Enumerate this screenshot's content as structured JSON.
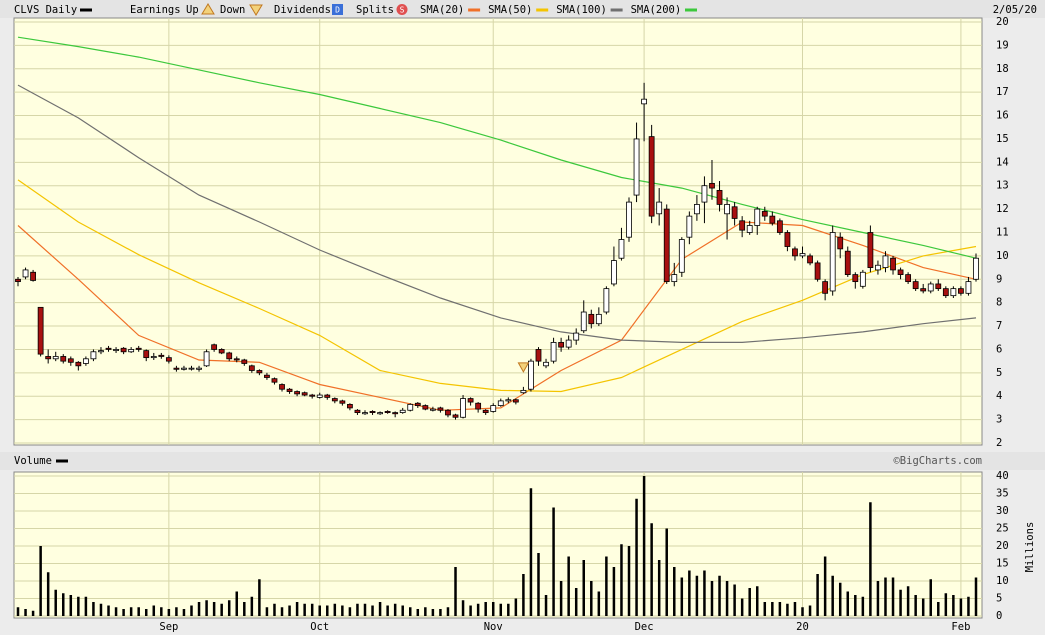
{
  "chart_data": {
    "type": "candlestick",
    "title": "CLVS Daily",
    "earnings_label": "Earnings",
    "up_label": "Up",
    "down_label": "Down",
    "dividends_label": "Dividends",
    "dividends_icon": "D",
    "splits_label": "Splits",
    "splits_icon": "S",
    "date": "2/05/20",
    "categories": [
      null,
      null,
      null,
      null,
      null,
      null,
      null,
      null,
      null,
      null,
      null,
      null,
      null,
      null,
      null,
      null,
      null,
      null,
      null,
      null,
      "Sep",
      null,
      null,
      null,
      null,
      null,
      null,
      null,
      null,
      null,
      null,
      null,
      null,
      null,
      null,
      null,
      null,
      null,
      null,
      null,
      "Oct",
      null,
      null,
      null,
      null,
      null,
      null,
      null,
      null,
      null,
      null,
      null,
      null,
      null,
      null,
      null,
      null,
      null,
      null,
      null,
      null,
      null,
      null,
      "Nov",
      null,
      null,
      null,
      null,
      null,
      null,
      null,
      null,
      null,
      null,
      null,
      null,
      null,
      null,
      null,
      null,
      null,
      null,
      null,
      "Dec",
      null,
      null,
      null,
      null,
      null,
      null,
      null,
      null,
      null,
      null,
      null,
      null,
      null,
      null,
      null,
      null,
      null,
      null,
      null,
      null,
      "20",
      null,
      null,
      null,
      null,
      null,
      null,
      null,
      null,
      null,
      null,
      null,
      null,
      null,
      null,
      null,
      null,
      null,
      null,
      null,
      null,
      "Feb",
      null,
      null
    ],
    "open": [
      9.0,
      9.1,
      9.3,
      7.8,
      5.7,
      5.6,
      5.7,
      5.6,
      5.45,
      5.4,
      5.6,
      5.9,
      6.05,
      5.95,
      6.05,
      5.9,
      6.05,
      5.95,
      5.65,
      5.75,
      5.65,
      5.2,
      5.15,
      5.2,
      5.15,
      5.3,
      6.2,
      6.0,
      5.85,
      5.6,
      5.55,
      5.3,
      5.1,
      4.9,
      4.75,
      4.5,
      4.3,
      4.2,
      4.15,
      4.05,
      3.95,
      4.05,
      3.9,
      3.8,
      3.65,
      3.4,
      3.25,
      3.35,
      3.25,
      3.35,
      3.3,
      3.3,
      3.4,
      3.7,
      3.6,
      3.4,
      3.5,
      3.4,
      3.2,
      3.1,
      3.9,
      3.7,
      3.4,
      3.35,
      3.6,
      3.8,
      3.85,
      4.15,
      4.3,
      6.0,
      5.3,
      5.5,
      6.3,
      6.1,
      6.4,
      6.8,
      7.5,
      7.1,
      7.6,
      8.8,
      9.9,
      10.8,
      12.6,
      16.5,
      15.1,
      11.8,
      12.0,
      8.9,
      9.3,
      10.8,
      11.8,
      12.3,
      13.1,
      12.8,
      11.8,
      12.1,
      11.5,
      11.0,
      11.3,
      11.9,
      11.7,
      11.5,
      11.0,
      10.3,
      10.0,
      10.0,
      9.7,
      8.9,
      8.5,
      10.8,
      10.2,
      9.2,
      8.7,
      11.0,
      9.4,
      9.5,
      9.9,
      9.4,
      9.2,
      8.9,
      8.6,
      8.5,
      8.8,
      8.6,
      8.3,
      8.6,
      8.4,
      9.0
    ],
    "high": [
      9.1,
      9.5,
      9.4,
      7.8,
      6.0,
      5.9,
      5.8,
      5.7,
      5.5,
      5.7,
      6.0,
      6.1,
      6.15,
      6.1,
      6.1,
      6.1,
      6.15,
      6.0,
      5.85,
      5.85,
      5.75,
      5.3,
      5.3,
      5.3,
      5.3,
      6.0,
      6.25,
      6.05,
      5.9,
      5.7,
      5.6,
      5.35,
      5.15,
      5.0,
      4.8,
      4.55,
      4.35,
      4.25,
      4.2,
      4.1,
      4.15,
      4.1,
      3.95,
      3.85,
      3.7,
      3.45,
      3.4,
      3.4,
      3.35,
      3.4,
      3.35,
      3.5,
      3.7,
      3.75,
      3.65,
      3.55,
      3.55,
      3.45,
      3.25,
      4.05,
      3.95,
      3.75,
      3.45,
      3.7,
      3.9,
      3.95,
      3.9,
      4.4,
      5.6,
      6.1,
      5.6,
      6.5,
      6.5,
      6.6,
      6.9,
      8.1,
      7.7,
      7.8,
      8.7,
      10.4,
      11.2,
      12.5,
      15.7,
      17.4,
      15.6,
      12.9,
      12.2,
      9.7,
      10.8,
      11.9,
      12.6,
      13.4,
      14.1,
      13.2,
      12.5,
      12.3,
      11.7,
      11.5,
      12.1,
      12.1,
      11.9,
      11.6,
      11.1,
      10.4,
      10.4,
      10.1,
      9.8,
      9.0,
      11.3,
      11.0,
      10.4,
      9.3,
      9.4,
      11.3,
      9.8,
      10.2,
      10.0,
      9.5,
      9.3,
      9.0,
      8.8,
      8.9,
      9.0,
      8.7,
      8.7,
      8.7,
      9.1,
      10.1
    ],
    "low": [
      8.7,
      9.0,
      8.9,
      5.7,
      5.4,
      5.5,
      5.4,
      5.3,
      5.1,
      5.3,
      5.5,
      5.8,
      5.9,
      5.85,
      5.8,
      5.85,
      5.9,
      5.5,
      5.55,
      5.6,
      5.4,
      5.05,
      5.1,
      5.1,
      5.05,
      5.25,
      5.9,
      5.8,
      5.5,
      5.45,
      5.3,
      5.0,
      4.9,
      4.7,
      4.5,
      4.2,
      4.1,
      4.0,
      4.0,
      3.9,
      3.9,
      3.85,
      3.7,
      3.6,
      3.4,
      3.2,
      3.2,
      3.2,
      3.2,
      3.25,
      3.1,
      3.25,
      3.35,
      3.5,
      3.4,
      3.35,
      3.3,
      3.1,
      3.0,
      3.05,
      3.6,
      3.3,
      3.2,
      3.3,
      3.55,
      3.7,
      3.65,
      4.1,
      4.2,
      5.3,
      5.2,
      5.4,
      5.9,
      6.0,
      6.2,
      6.7,
      6.9,
      7.0,
      7.5,
      8.7,
      9.8,
      10.6,
      12.3,
      14.9,
      11.4,
      11.3,
      8.8,
      8.7,
      9.1,
      10.5,
      11.5,
      11.4,
      12.4,
      11.9,
      10.7,
      11.3,
      10.8,
      10.9,
      10.9,
      11.5,
      11.3,
      10.9,
      10.2,
      9.8,
      9.9,
      9.6,
      8.9,
      8.1,
      8.3,
      9.9,
      9.1,
      8.6,
      8.6,
      9.3,
      9.2,
      9.3,
      9.2,
      9.0,
      8.8,
      8.5,
      8.4,
      8.4,
      8.5,
      8.2,
      8.2,
      8.3,
      8.3,
      8.9
    ],
    "close": [
      8.9,
      9.4,
      8.95,
      5.8,
      5.6,
      5.7,
      5.5,
      5.45,
      5.3,
      5.6,
      5.9,
      5.95,
      6.0,
      6.0,
      5.9,
      6.0,
      6.0,
      5.65,
      5.7,
      5.7,
      5.5,
      5.15,
      5.2,
      5.2,
      5.2,
      5.9,
      6.0,
      5.85,
      5.6,
      5.55,
      5.4,
      5.1,
      5.0,
      4.8,
      4.6,
      4.3,
      4.2,
      4.1,
      4.05,
      4.0,
      4.05,
      3.95,
      3.8,
      3.7,
      3.5,
      3.3,
      3.3,
      3.3,
      3.3,
      3.3,
      3.25,
      3.4,
      3.65,
      3.6,
      3.45,
      3.45,
      3.4,
      3.2,
      3.1,
      3.9,
      3.75,
      3.45,
      3.3,
      3.6,
      3.8,
      3.85,
      3.75,
      4.25,
      5.5,
      5.5,
      5.45,
      6.3,
      6.1,
      6.4,
      6.7,
      7.6,
      7.1,
      7.5,
      8.6,
      9.8,
      10.7,
      12.3,
      15.0,
      16.7,
      11.7,
      12.3,
      8.9,
      9.2,
      10.7,
      11.7,
      12.2,
      13.0,
      12.9,
      12.2,
      12.2,
      11.6,
      11.1,
      11.3,
      12.0,
      11.7,
      11.4,
      11.0,
      10.4,
      10.0,
      10.1,
      9.7,
      9.0,
      8.4,
      11.0,
      10.3,
      9.2,
      8.9,
      9.3,
      9.5,
      9.6,
      10.0,
      9.4,
      9.2,
      8.9,
      8.6,
      8.5,
      8.8,
      8.6,
      8.3,
      8.6,
      8.4,
      8.9,
      9.9
    ],
    "up_color": "#ffffff",
    "down_color": "#a81010",
    "earnings_down": [
      67
    ],
    "ylim": [
      2,
      20
    ],
    "yticks": [
      2,
      3,
      4,
      5,
      6,
      7,
      8,
      9,
      10,
      11,
      12,
      13,
      14,
      15,
      16,
      17,
      18,
      19,
      20
    ],
    "grid": true,
    "sma": [
      {
        "name": "SMA(20)",
        "color": "#f07028",
        "x": [
          0,
          8,
          16,
          24,
          32,
          40,
          48,
          56,
          64,
          72,
          80,
          88,
          96,
          104,
          112,
          120,
          127
        ],
        "values": [
          11.3,
          9.0,
          6.6,
          5.55,
          5.45,
          4.5,
          3.95,
          3.4,
          3.5,
          5.1,
          6.4,
          9.85,
          11.45,
          11.3,
          10.45,
          9.5,
          9.0
        ]
      },
      {
        "name": "SMA(50)",
        "color": "#f4c400",
        "x": [
          0,
          8,
          16,
          24,
          32,
          40,
          48,
          56,
          64,
          72,
          80,
          88,
          96,
          104,
          112,
          120,
          127
        ],
        "values": [
          13.25,
          11.45,
          10.05,
          8.85,
          7.75,
          6.6,
          5.1,
          4.55,
          4.25,
          4.2,
          4.8,
          6.0,
          7.2,
          8.1,
          9.2,
          10.0,
          10.4
        ]
      },
      {
        "name": "SMA(100)",
        "color": "#707070",
        "x": [
          0,
          8,
          16,
          24,
          32,
          40,
          48,
          56,
          64,
          72,
          80,
          88,
          96,
          104,
          112,
          120,
          127
        ],
        "values": [
          17.3,
          15.9,
          14.2,
          12.6,
          11.45,
          10.25,
          9.2,
          8.2,
          7.35,
          6.75,
          6.4,
          6.3,
          6.3,
          6.5,
          6.75,
          7.1,
          7.35
        ]
      },
      {
        "name": "SMA(200)",
        "color": "#3cc83c",
        "x": [
          0,
          8,
          16,
          24,
          32,
          40,
          48,
          56,
          64,
          72,
          80,
          88,
          96,
          104,
          112,
          120,
          127
        ],
        "values": [
          19.35,
          18.95,
          18.5,
          17.95,
          17.4,
          16.9,
          16.3,
          15.7,
          14.95,
          14.1,
          13.35,
          12.9,
          12.2,
          11.55,
          11.0,
          10.45,
          9.9
        ]
      }
    ],
    "volume": {
      "title": "Volume",
      "credit": "©BigCharts.com",
      "y_label": "Millions",
      "color": "#000000",
      "values": [
        2.5,
        2,
        1.5,
        20,
        12.5,
        7.5,
        6.5,
        6,
        5.5,
        5.5,
        4,
        3.5,
        3,
        2.5,
        2,
        2.5,
        2.5,
        2,
        3,
        2.5,
        2,
        2.5,
        2,
        3,
        4,
        4.5,
        4,
        3.5,
        4.5,
        7,
        4,
        5.5,
        10.5,
        2.5,
        3.5,
        2.5,
        3,
        4,
        3.5,
        3.5,
        3,
        3,
        3.5,
        3,
        2.5,
        3.5,
        3.5,
        3,
        4,
        3,
        3.5,
        3,
        2.5,
        2,
        2.5,
        2,
        2,
        2.5,
        14,
        4.5,
        3,
        3.5,
        4,
        4,
        3.5,
        3.5,
        5,
        12,
        36.5,
        18,
        6,
        31,
        10,
        17,
        8,
        16,
        10,
        7,
        17,
        14,
        20.5,
        20,
        33.5,
        40,
        26.5,
        16,
        25,
        14,
        11,
        13,
        11.5,
        13,
        10,
        11.5,
        10,
        9,
        5,
        8,
        8.5,
        4,
        4,
        4,
        3.5,
        4,
        2.5,
        3,
        12,
        17,
        11.5,
        9.5,
        7,
        6,
        5.5,
        32.5,
        10,
        11,
        11,
        7.5,
        8.5,
        6,
        5,
        10.5,
        4,
        6.5,
        6,
        5,
        5.5,
        11
      ],
      "ylim": [
        0,
        40
      ],
      "yticks": [
        0,
        5,
        10,
        15,
        20,
        25,
        30,
        35,
        40
      ]
    }
  }
}
